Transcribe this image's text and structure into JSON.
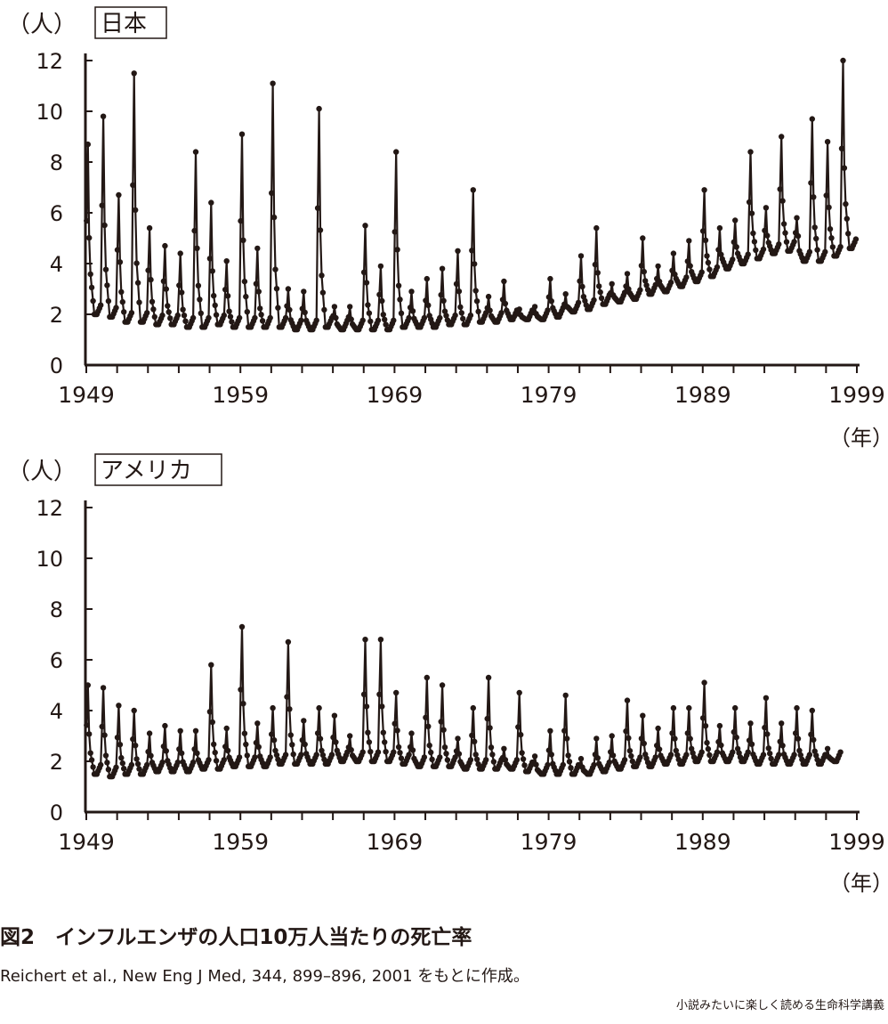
{
  "chart_data": [
    {
      "type": "line",
      "title": "日本",
      "ylabel": "（人）",
      "xlabel": "（年）",
      "ylim": [
        0,
        12
      ],
      "xlim": [
        1949,
        1999
      ],
      "yticks": [
        "0",
        "2",
        "4",
        "6",
        "8",
        "10",
        "12"
      ],
      "xticks": [
        "1949",
        "1959",
        "1969",
        "1979",
        "1989",
        "1999"
      ],
      "series_note": "monthly values; annual winter peak and summer trough",
      "years": [
        1949,
        1950,
        1951,
        1952,
        1953,
        1954,
        1955,
        1956,
        1957,
        1958,
        1959,
        1960,
        1961,
        1962,
        1963,
        1964,
        1965,
        1966,
        1967,
        1968,
        1969,
        1970,
        1971,
        1972,
        1973,
        1974,
        1975,
        1976,
        1977,
        1978,
        1979,
        1980,
        1981,
        1982,
        1983,
        1984,
        1985,
        1986,
        1987,
        1988,
        1989,
        1990,
        1991,
        1992,
        1993,
        1994,
        1995,
        1996,
        1997,
        1998
      ],
      "peaks": [
        8.7,
        9.8,
        6.7,
        11.5,
        5.4,
        4.7,
        4.4,
        8.4,
        6.4,
        4.1,
        9.1,
        4.6,
        11.1,
        3.0,
        2.9,
        10.1,
        2.3,
        2.3,
        5.5,
        3.9,
        8.4,
        2.9,
        3.4,
        3.8,
        4.5,
        6.9,
        2.7,
        3.3,
        2.2,
        2.3,
        3.4,
        2.8,
        4.3,
        5.4,
        3.2,
        3.6,
        5.0,
        3.9,
        4.4,
        4.9,
        6.9,
        5.4,
        5.7,
        8.4,
        6.2,
        9.0,
        5.8,
        9.7,
        8.8,
        12.0
      ],
      "troughs": [
        2.0,
        1.9,
        1.7,
        1.7,
        1.6,
        1.6,
        1.5,
        1.5,
        1.6,
        1.5,
        1.5,
        1.5,
        1.5,
        1.4,
        1.4,
        1.5,
        1.4,
        1.4,
        1.4,
        1.4,
        1.5,
        1.5,
        1.5,
        1.6,
        1.6,
        1.7,
        1.7,
        1.8,
        1.8,
        1.8,
        1.9,
        2.1,
        2.2,
        2.4,
        2.5,
        2.6,
        2.8,
        2.9,
        3.1,
        3.3,
        3.5,
        3.8,
        4.0,
        4.2,
        4.4,
        4.5,
        4.1,
        4.1,
        4.3,
        4.6
      ]
    },
    {
      "type": "line",
      "title": "アメリカ",
      "ylabel": "（人）",
      "xlabel": "（年）",
      "ylim": [
        0,
        12
      ],
      "xlim": [
        1949,
        1999
      ],
      "yticks": [
        "0",
        "2",
        "4",
        "6",
        "8",
        "10",
        "12"
      ],
      "xticks": [
        "1949",
        "1959",
        "1969",
        "1979",
        "1989",
        "1999"
      ],
      "years": [
        1949,
        1950,
        1951,
        1952,
        1953,
        1954,
        1955,
        1956,
        1957,
        1958,
        1959,
        1960,
        1961,
        1962,
        1963,
        1964,
        1965,
        1966,
        1967,
        1968,
        1969,
        1970,
        1971,
        1972,
        1973,
        1974,
        1975,
        1976,
        1977,
        1978,
        1979,
        1980,
        1981,
        1982,
        1983,
        1984,
        1985,
        1986,
        1987,
        1988,
        1989,
        1990,
        1991,
        1992,
        1993,
        1994,
        1995,
        1996,
        1997
      ],
      "peaks": [
        5.0,
        4.9,
        4.2,
        4.0,
        3.1,
        3.4,
        3.2,
        3.2,
        5.8,
        3.3,
        7.3,
        3.5,
        4.1,
        6.7,
        3.6,
        4.1,
        3.8,
        3.0,
        6.8,
        6.8,
        4.7,
        3.1,
        5.3,
        5.0,
        2.9,
        4.1,
        5.3,
        2.5,
        4.7,
        2.2,
        3.2,
        4.6,
        2.1,
        2.9,
        3.0,
        4.4,
        3.8,
        3.3,
        4.1,
        4.1,
        5.1,
        3.4,
        4.1,
        3.5,
        4.5,
        3.5,
        4.1,
        4.0,
        2.5
      ],
      "troughs": [
        1.5,
        1.4,
        1.5,
        1.5,
        1.6,
        1.6,
        1.6,
        1.7,
        1.7,
        1.8,
        1.8,
        1.8,
        1.9,
        1.9,
        1.9,
        1.9,
        2.0,
        2.0,
        2.0,
        2.0,
        1.9,
        1.8,
        1.8,
        1.8,
        1.7,
        1.7,
        1.7,
        1.7,
        1.6,
        1.5,
        1.5,
        1.5,
        1.5,
        1.6,
        1.7,
        1.8,
        1.8,
        1.9,
        1.9,
        2.0,
        2.0,
        2.0,
        2.0,
        1.9,
        1.9,
        1.9,
        1.9,
        1.9,
        2.0
      ]
    }
  ],
  "caption": {
    "title": "図2　インフルエンザの人口10万人当たりの死亡率",
    "reference": "Reichert et al., New Eng J Med, 344, 899–896, 2001 をもとに作成。",
    "footer": "小説みたいに楽しく読める生命科学講義"
  },
  "colors": {
    "ink": "#231815"
  }
}
